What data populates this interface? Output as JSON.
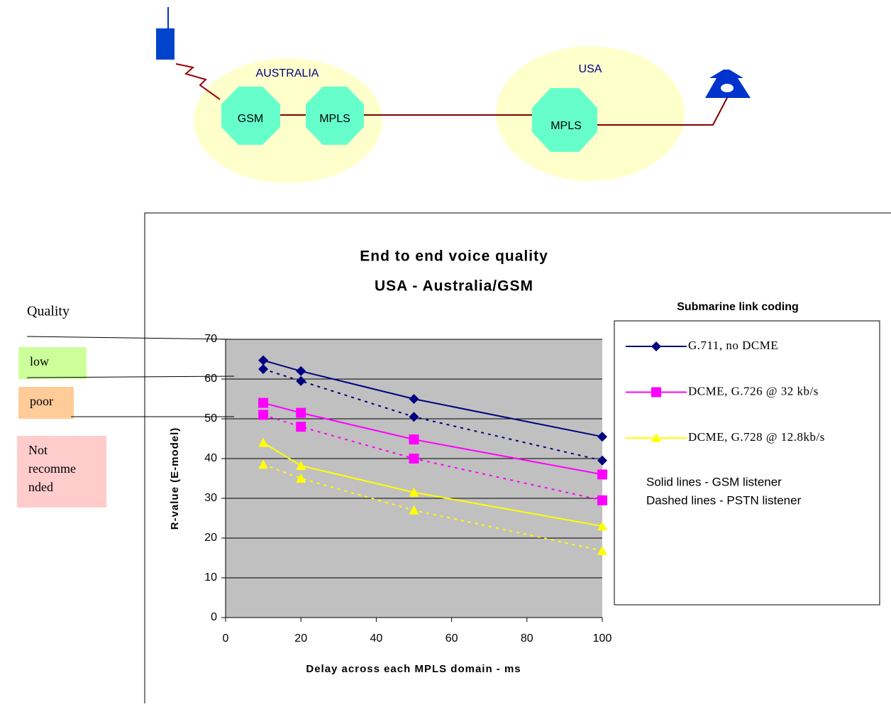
{
  "diagram": {
    "regions": [
      "AUSTRALIA",
      "USA"
    ],
    "nodes": [
      "GSM",
      "MPLS",
      "MPLS"
    ]
  },
  "quality_panel": {
    "title": "Quality",
    "levels": [
      {
        "lines": [
          "low"
        ],
        "color": "#ccff99"
      },
      {
        "lines": [
          "poor"
        ],
        "color": "#ffcc99"
      },
      {
        "lines": [
          "Not",
          "recomme",
          "nded"
        ],
        "color": "#ffcccc"
      }
    ]
  },
  "chart_data": {
    "type": "line",
    "title": [
      "End to end voice quality",
      "USA - Australia/GSM"
    ],
    "x_label": "Delay across each MPLS domain - ms",
    "y_label": "R-value (E-model)",
    "x": [
      10,
      20,
      50,
      100
    ],
    "xlim": [
      0,
      100
    ],
    "xticks": [
      0,
      20,
      40,
      60,
      80,
      100
    ],
    "ylim": [
      0,
      70
    ],
    "yticks": [
      0,
      10,
      20,
      30,
      40,
      50,
      60,
      70
    ],
    "grid": true,
    "legend_title": "Submarine link coding",
    "legend_notes": [
      "Solid lines - GSM listener",
      "Dashed lines - PSTN listener"
    ],
    "series": [
      {
        "name": "G.711, no DCME",
        "color": "#000080",
        "marker": "diamond",
        "dashed": false,
        "values": [
          64.7,
          62,
          55,
          45.5
        ]
      },
      {
        "name": "DCME, G.726 @ 32 kb/s",
        "color": "#ff00ff",
        "marker": "square",
        "dashed": false,
        "values": [
          54,
          51.5,
          44.8,
          36
        ]
      },
      {
        "name": "DCME, G.728 @ 12.8kb/s",
        "color": "#ffff00",
        "marker": "triangle",
        "dashed": false,
        "values": [
          44,
          38.2,
          31.5,
          23
        ]
      },
      {
        "color": "#000080",
        "marker": "diamond",
        "dashed": true,
        "values": [
          62.5,
          59.5,
          50.5,
          39.5
        ]
      },
      {
        "color": "#ff00ff",
        "marker": "square",
        "dashed": true,
        "values": [
          51,
          48,
          40,
          29.5
        ]
      },
      {
        "color": "#ffff00",
        "marker": "triangle",
        "dashed": true,
        "values": [
          38.5,
          35,
          27,
          16.8
        ]
      }
    ]
  }
}
